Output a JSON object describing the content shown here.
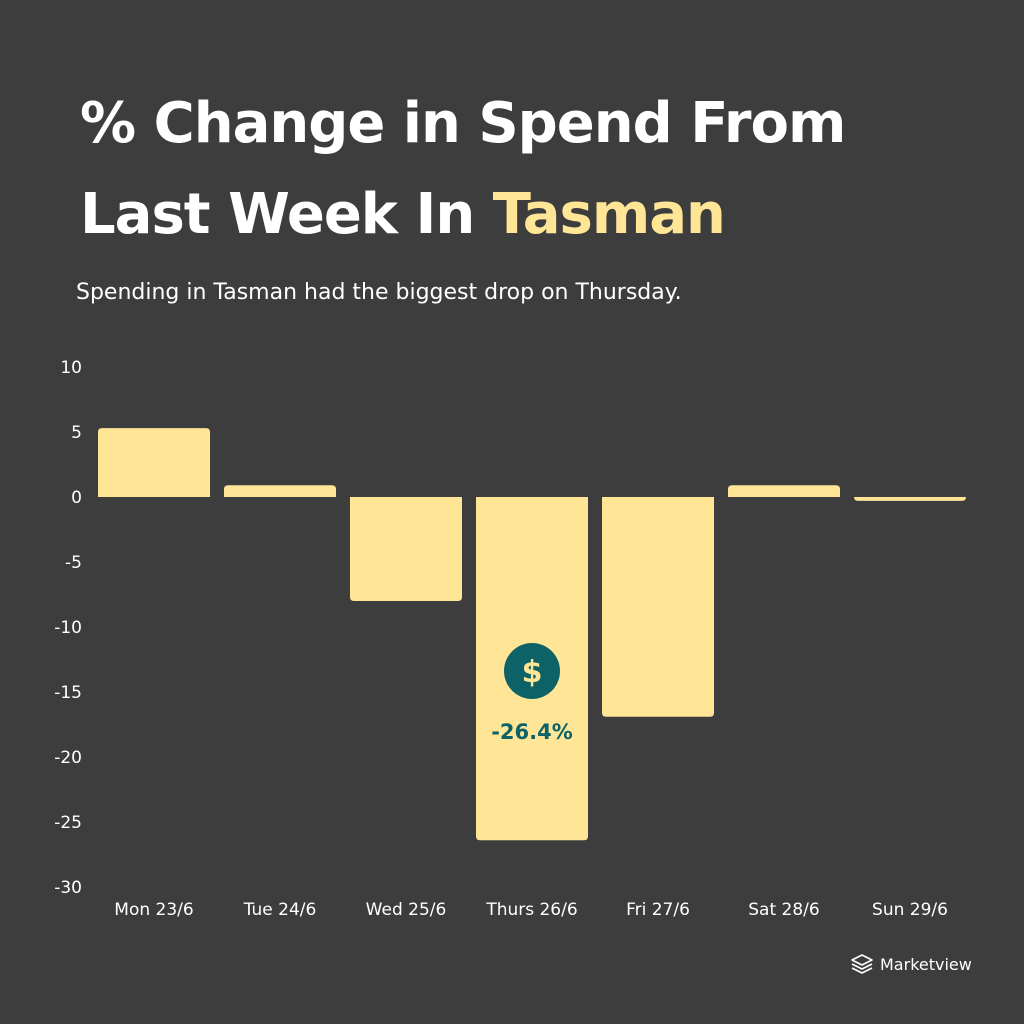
{
  "title": {
    "line1": "% Change in Spend From",
    "line2_prefix": "Last Week In ",
    "line2_accent": "Tasman"
  },
  "subtitle": "Spending in Tasman had the biggest drop on Thursday.",
  "brand": {
    "name": "Marketview",
    "icon": "stacked-layers-icon"
  },
  "chart_data": {
    "type": "bar",
    "title": "",
    "xlabel": "",
    "ylabel": "",
    "categories": [
      "Mon 23/6",
      "Tue 24/6",
      "Wed 25/6",
      "Thurs 26/6",
      "Fri 27/6",
      "Sat 28/6",
      "Sun 29/6"
    ],
    "values": [
      5.3,
      0.9,
      -8.0,
      -26.4,
      -16.9,
      0.9,
      -0.3
    ],
    "ylim": [
      -30,
      10
    ],
    "yticks": [
      10,
      5,
      0,
      -5,
      -10,
      -15,
      -20,
      -25,
      -30
    ],
    "grid": false,
    "legend": "none",
    "annotations": [
      {
        "category": "Thurs 26/6",
        "text": "-26.4%",
        "icon": "dollar-icon"
      }
    ],
    "colors": {
      "bar": "#ffe596",
      "annotation": "#0c6266",
      "background": "#3d3d3d"
    }
  }
}
